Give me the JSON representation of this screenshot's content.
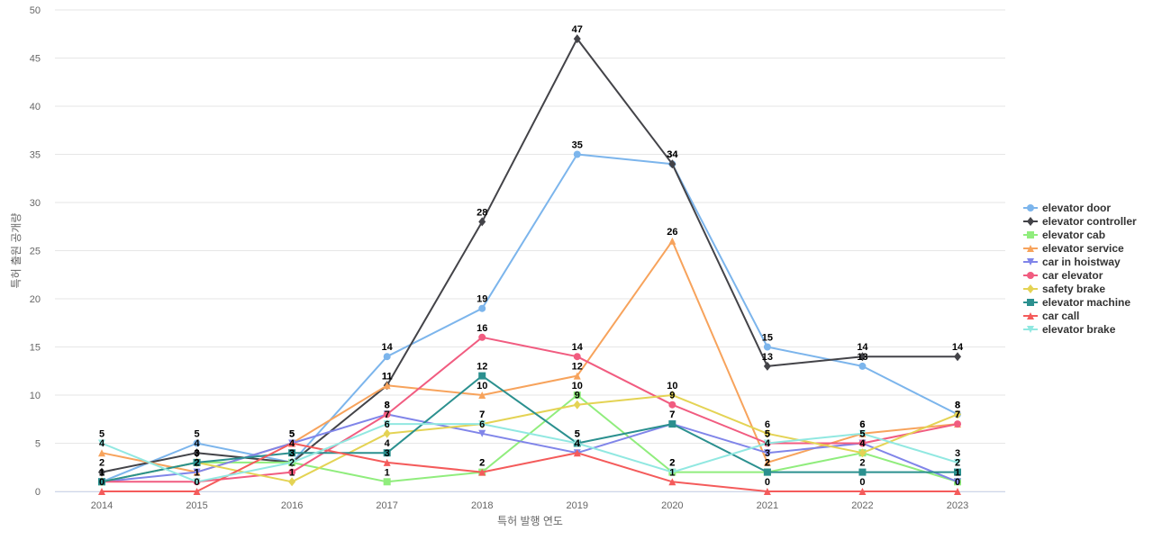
{
  "chart_data": {
    "type": "line",
    "title": "",
    "xlabel": "특허 발행 연도",
    "ylabel": "특허 출원 공개량",
    "categories": [
      "2014",
      "2015",
      "2016",
      "2017",
      "2018",
      "2019",
      "2020",
      "2021",
      "2022",
      "2023"
    ],
    "ylim": [
      0,
      50
    ],
    "yticks": [
      0,
      5,
      10,
      15,
      20,
      25,
      30,
      35,
      40,
      45,
      50
    ],
    "grid": true,
    "legend_position": "right",
    "series": [
      {
        "name": "elevator door",
        "color": "#7cb5ec",
        "marker": "circle",
        "values": [
          1,
          5,
          3,
          14,
          19,
          35,
          34,
          15,
          13,
          8
        ]
      },
      {
        "name": "elevator controller",
        "color": "#434348",
        "marker": "diamond",
        "values": [
          2,
          4,
          3,
          11,
          28,
          47,
          34,
          13,
          14,
          14
        ]
      },
      {
        "name": "elevator cab",
        "color": "#90ed7d",
        "marker": "square",
        "values": [
          1,
          3,
          3,
          1,
          2,
          10,
          2,
          2,
          4,
          1
        ]
      },
      {
        "name": "elevator service",
        "color": "#f7a35c",
        "marker": "triangle",
        "values": [
          4,
          2,
          5,
          11,
          10,
          12,
          26,
          3,
          6,
          7
        ]
      },
      {
        "name": "car in hoistway",
        "color": "#8085e9",
        "marker": "triangle-down",
        "values": [
          1,
          2,
          5,
          8,
          6,
          4,
          7,
          4,
          5,
          1
        ]
      },
      {
        "name": "car elevator",
        "color": "#f15c80",
        "marker": "circle",
        "values": [
          1,
          1,
          2,
          8,
          16,
          14,
          9,
          5,
          5,
          7
        ]
      },
      {
        "name": "safety brake",
        "color": "#e4d354",
        "marker": "diamond",
        "values": [
          1,
          3,
          1,
          6,
          7,
          9,
          10,
          6,
          4,
          8
        ]
      },
      {
        "name": "elevator machine",
        "color": "#2b908f",
        "marker": "square",
        "values": [
          1,
          3,
          4,
          4,
          12,
          5,
          7,
          2,
          2,
          2
        ]
      },
      {
        "name": "car call",
        "color": "#f45b5b",
        "marker": "triangle",
        "values": [
          0,
          0,
          5,
          3,
          2,
          4,
          1,
          0,
          0,
          0
        ]
      },
      {
        "name": "elevator brake",
        "color": "#91e8e1",
        "marker": "triangle-down",
        "values": [
          5,
          1,
          3,
          7,
          7,
          5,
          2,
          5,
          6,
          3
        ]
      }
    ]
  }
}
